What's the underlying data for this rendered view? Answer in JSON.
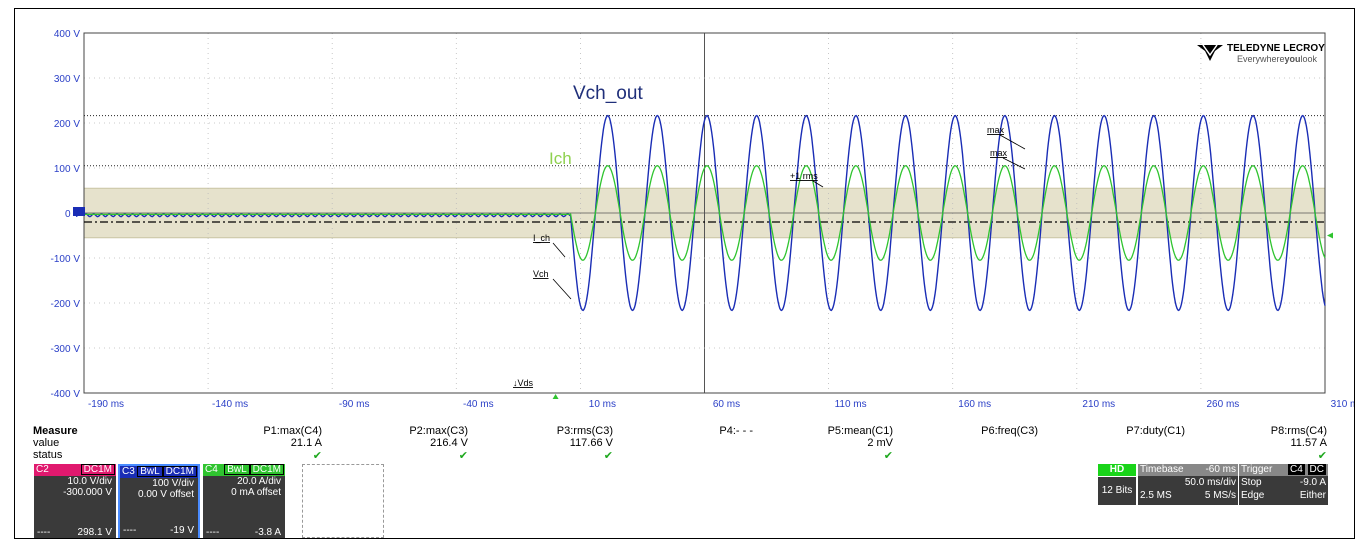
{
  "brand": {
    "name": "TELEDYNE LECROY",
    "tagline_pre": "Everywhere",
    "tagline_bold": "you",
    "tagline_post": "look"
  },
  "labels": {
    "vch_out": "Vch_out",
    "ich": "Ich",
    "max1": "max",
    "max2": "max",
    "rms": "+1 rms",
    "ich_marker": "I_ch",
    "vch_marker": "Vch",
    "vds_marker": "↓Vds"
  },
  "y_ticks": [
    "400 V",
    "300 V",
    "200 V",
    "100 V",
    "0 V",
    "-100 V",
    "-200 V",
    "-300 V",
    "-400 V"
  ],
  "x_ticks": [
    "-190 ms",
    "-140 ms",
    "-90 ms",
    "-40 ms",
    "10 ms",
    "60 ms",
    "110 ms",
    "160 ms",
    "210 ms",
    "260 ms",
    "310 ms"
  ],
  "chart_data": {
    "type": "line",
    "ylim": [
      -400,
      400
    ],
    "xlim": [
      -190,
      310
    ],
    "y_unit": "V",
    "x_unit": "ms",
    "series": [
      {
        "name": "Vch_out",
        "color": "#1a2db5",
        "start_ms": 6,
        "amplitude": 216.4,
        "period_ms": 20,
        "offset": 0
      },
      {
        "name": "Ich",
        "color": "#2fc42f",
        "start_ms": 6,
        "amplitude": 105,
        "period_ms": 20,
        "offset": 0
      }
    ],
    "max_lines": [
      216.4,
      105
    ],
    "mean_line": -20,
    "band": [
      -55,
      55
    ]
  },
  "measure": {
    "title": "Measure",
    "row_value": "value",
    "row_status": "status",
    "params": [
      {
        "name": "P1:max(C4)",
        "value": "21.1 A",
        "ok": true
      },
      {
        "name": "P2:max(C3)",
        "value": "216.4 V",
        "ok": true
      },
      {
        "name": "P3:rms(C3)",
        "value": "117.66 V",
        "ok": true
      },
      {
        "name": "P4:- - -",
        "value": "",
        "ok": false
      },
      {
        "name": "P5:mean(C1)",
        "value": "2 mV",
        "ok": true
      },
      {
        "name": "P6:freq(C3)",
        "value": "",
        "ok": false
      },
      {
        "name": "P7:duty(C1)",
        "value": "",
        "ok": false
      },
      {
        "name": "P8:rms(C4)",
        "value": "11.57 A",
        "ok": true
      }
    ]
  },
  "channels": [
    {
      "id": "C2",
      "coupling": "DC1M",
      "bw": "",
      "color": "#e0196e",
      "vdiv": "10.0 V/div",
      "offset": "-300.000 V",
      "foot_l": "----",
      "foot_r": "298.1 V"
    },
    {
      "id": "C3",
      "coupling": "DC1M",
      "bw": "BwL",
      "color": "#1a2db5",
      "vdiv": "100 V/div",
      "offset": "0.00 V offset",
      "foot_l": "----",
      "foot_r": "-19 V"
    },
    {
      "id": "C4",
      "coupling": "DC1M",
      "bw": "BwL",
      "color": "#2fc42f",
      "vdiv": "20.0 A/div",
      "offset": "0 mA offset",
      "foot_l": "----",
      "foot_r": "-3.8 A"
    }
  ],
  "acq": {
    "hd": "HD",
    "bits": "12 Bits",
    "timebase_label": "Timebase",
    "timebase_delay": "-60 ms",
    "tdiv": "50.0 ms/div",
    "samples": "2.5 MS",
    "rate": "5 MS/s",
    "trigger_label": "Trigger",
    "trig_ch": "C4",
    "trig_coupling": "DC",
    "trig_mode": "Stop",
    "trig_level": "-9.0 A",
    "trig_type": "Edge",
    "trig_slope": "Either"
  }
}
